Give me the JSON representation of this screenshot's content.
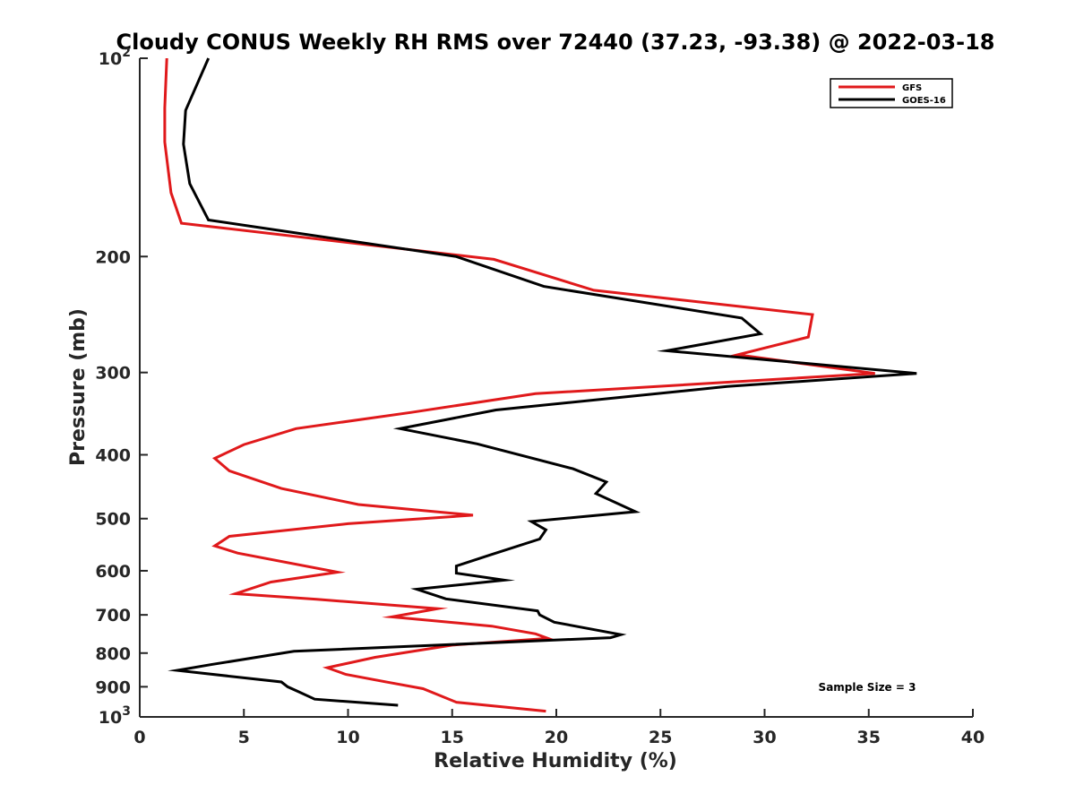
{
  "chart_data": {
    "type": "line",
    "title": "Cloudy CONUS Weekly RH RMS over 72440 (37.23, -93.38) @ 2022-03-18",
    "xlabel": "Relative Humidity (%)",
    "ylabel": "Pressure (mb)",
    "xlim": [
      0,
      40
    ],
    "ylim": [
      100,
      1000
    ],
    "y_scale": "log",
    "y_reversed": true,
    "xticks": [
      0,
      5,
      10,
      15,
      20,
      25,
      30,
      35,
      40
    ],
    "yticks": [
      {
        "value": 100,
        "base": "10",
        "exp": "2"
      },
      {
        "value": 200,
        "label": "200"
      },
      {
        "value": 300,
        "label": "300"
      },
      {
        "value": 400,
        "label": "400"
      },
      {
        "value": 500,
        "label": "500"
      },
      {
        "value": 600,
        "label": "600"
      },
      {
        "value": 700,
        "label": "700"
      },
      {
        "value": 800,
        "label": "800"
      },
      {
        "value": 900,
        "label": "900"
      },
      {
        "value": 1000,
        "base": "10",
        "exp": "3"
      }
    ],
    "grid": false,
    "legend_position": "top-right",
    "annotation": "Sample Size = 3",
    "series": [
      {
        "name": "GFS",
        "color": "#e0191b",
        "points": [
          [
            1.3,
            100
          ],
          [
            1.2,
            119
          ],
          [
            1.2,
            134
          ],
          [
            1.5,
            160
          ],
          [
            2.0,
            178
          ],
          [
            17.0,
            202
          ],
          [
            21.8,
            225
          ],
          [
            32.3,
            245
          ],
          [
            32.1,
            265
          ],
          [
            28.7,
            282
          ],
          [
            35.3,
            301
          ],
          [
            19.0,
            323
          ],
          [
            13.0,
            345
          ],
          [
            7.5,
            365
          ],
          [
            5.0,
            386
          ],
          [
            3.6,
            405
          ],
          [
            4.3,
            423
          ],
          [
            6.8,
            450
          ],
          [
            10.5,
            476
          ],
          [
            16.0,
            494
          ],
          [
            10.0,
            509
          ],
          [
            4.3,
            532
          ],
          [
            3.6,
            550
          ],
          [
            4.7,
            564
          ],
          [
            9.5,
            603
          ],
          [
            6.3,
            624
          ],
          [
            4.6,
            650
          ],
          [
            8.5,
            663
          ],
          [
            14.3,
            685
          ],
          [
            12.1,
            705
          ],
          [
            16.9,
            728
          ],
          [
            19.0,
            748
          ],
          [
            19.6,
            760
          ],
          [
            15.0,
            778
          ],
          [
            11.3,
            812
          ],
          [
            9.0,
            842
          ],
          [
            9.9,
            862
          ],
          [
            12.0,
            887
          ],
          [
            13.6,
            906
          ],
          [
            15.2,
            950
          ],
          [
            19.5,
            980
          ]
        ]
      },
      {
        "name": "GOES-16",
        "color": "#000000",
        "points": [
          [
            3.3,
            100
          ],
          [
            2.2,
            120
          ],
          [
            2.1,
            135
          ],
          [
            2.4,
            155
          ],
          [
            3.3,
            176
          ],
          [
            15.2,
            200
          ],
          [
            19.4,
            222
          ],
          [
            28.9,
            248
          ],
          [
            29.8,
            262
          ],
          [
            25.3,
            278
          ],
          [
            37.3,
            301
          ],
          [
            28.2,
            315
          ],
          [
            17.1,
            342
          ],
          [
            12.5,
            365
          ],
          [
            16.2,
            385
          ],
          [
            20.8,
            420
          ],
          [
            22.4,
            440
          ],
          [
            21.9,
            458
          ],
          [
            23.8,
            488
          ],
          [
            18.8,
            505
          ],
          [
            19.5,
            520
          ],
          [
            19.2,
            537
          ],
          [
            16.8,
            568
          ],
          [
            15.2,
            590
          ],
          [
            15.2,
            605
          ],
          [
            17.5,
            620
          ],
          [
            13.3,
            640
          ],
          [
            14.7,
            662
          ],
          [
            19.1,
            690
          ],
          [
            19.2,
            700
          ],
          [
            19.9,
            718
          ],
          [
            23.1,
            750
          ],
          [
            22.6,
            758
          ],
          [
            7.4,
            795
          ],
          [
            3.4,
            833
          ],
          [
            1.8,
            850
          ],
          [
            6.8,
            885
          ],
          [
            7.1,
            900
          ],
          [
            7.6,
            915
          ],
          [
            8.4,
            940
          ],
          [
            12.4,
            960
          ]
        ]
      }
    ]
  }
}
